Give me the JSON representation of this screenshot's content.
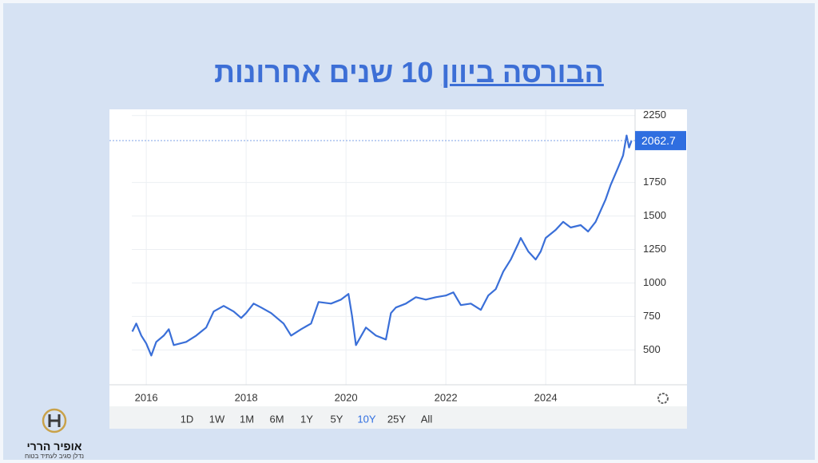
{
  "title_underlined": "הבורסה ביוון",
  "title_rest": "10 שנים אחרונות",
  "logo": {
    "name": "אופיר הררי",
    "tagline": "נדלן סגיב לעתיד בטוח"
  },
  "chart_data": {
    "type": "line",
    "x": [
      2015.72,
      2015.8,
      2015.9,
      2016.0,
      2016.1,
      2016.2,
      2016.35,
      2016.45,
      2016.55,
      2016.8,
      2017.0,
      2017.2,
      2017.35,
      2017.55,
      2017.75,
      2017.9,
      2018.0,
      2018.15,
      2018.3,
      2018.5,
      2018.75,
      2018.9,
      2019.1,
      2019.3,
      2019.45,
      2019.7,
      2019.9,
      2020.05,
      2020.12,
      2020.2,
      2020.4,
      2020.6,
      2020.8,
      2020.9,
      2021.0,
      2021.2,
      2021.4,
      2021.6,
      2021.8,
      2022.0,
      2022.15,
      2022.3,
      2022.5,
      2022.7,
      2022.85,
      2023.0,
      2023.15,
      2023.3,
      2023.45,
      2023.5,
      2023.65,
      2023.8,
      2023.9,
      2024.0,
      2024.2,
      2024.35,
      2024.5,
      2024.7,
      2024.85,
      2025.0,
      2025.2,
      2025.3,
      2025.45,
      2025.55,
      2025.62,
      2025.67,
      2025.72
    ],
    "series": [
      {
        "color": "#3a6fd8",
        "values": [
          637,
          697,
          607,
          548,
          458,
          560,
          607,
          655,
          536,
          560,
          607,
          667,
          787,
          829,
          787,
          739,
          775,
          846,
          817,
          775,
          697,
          607,
          655,
          697,
          858,
          846,
          876,
          918,
          757,
          536,
          667,
          607,
          578,
          775,
          817,
          846,
          894,
          876,
          894,
          906,
          930,
          835,
          846,
          799,
          906,
          954,
          1085,
          1175,
          1294,
          1336,
          1235,
          1175,
          1235,
          1336,
          1396,
          1456,
          1414,
          1432,
          1384,
          1456,
          1623,
          1731,
          1862,
          1952,
          2101,
          2011,
          2062.7
        ]
      }
    ],
    "last_price": 2062.7,
    "xlim": [
      2015.71,
      2025.79
    ],
    "xticks": [
      2016,
      2018,
      2020,
      2022,
      2024
    ],
    "ylim": [
      240,
      2290
    ],
    "yticks": [
      500,
      750,
      1000,
      1250,
      1500,
      1750,
      2250
    ],
    "grid": true,
    "range_buttons": [
      "1D",
      "1W",
      "1M",
      "6M",
      "1Y",
      "5Y",
      "10Y",
      "25Y",
      "All"
    ],
    "selected_range": "10Y"
  }
}
